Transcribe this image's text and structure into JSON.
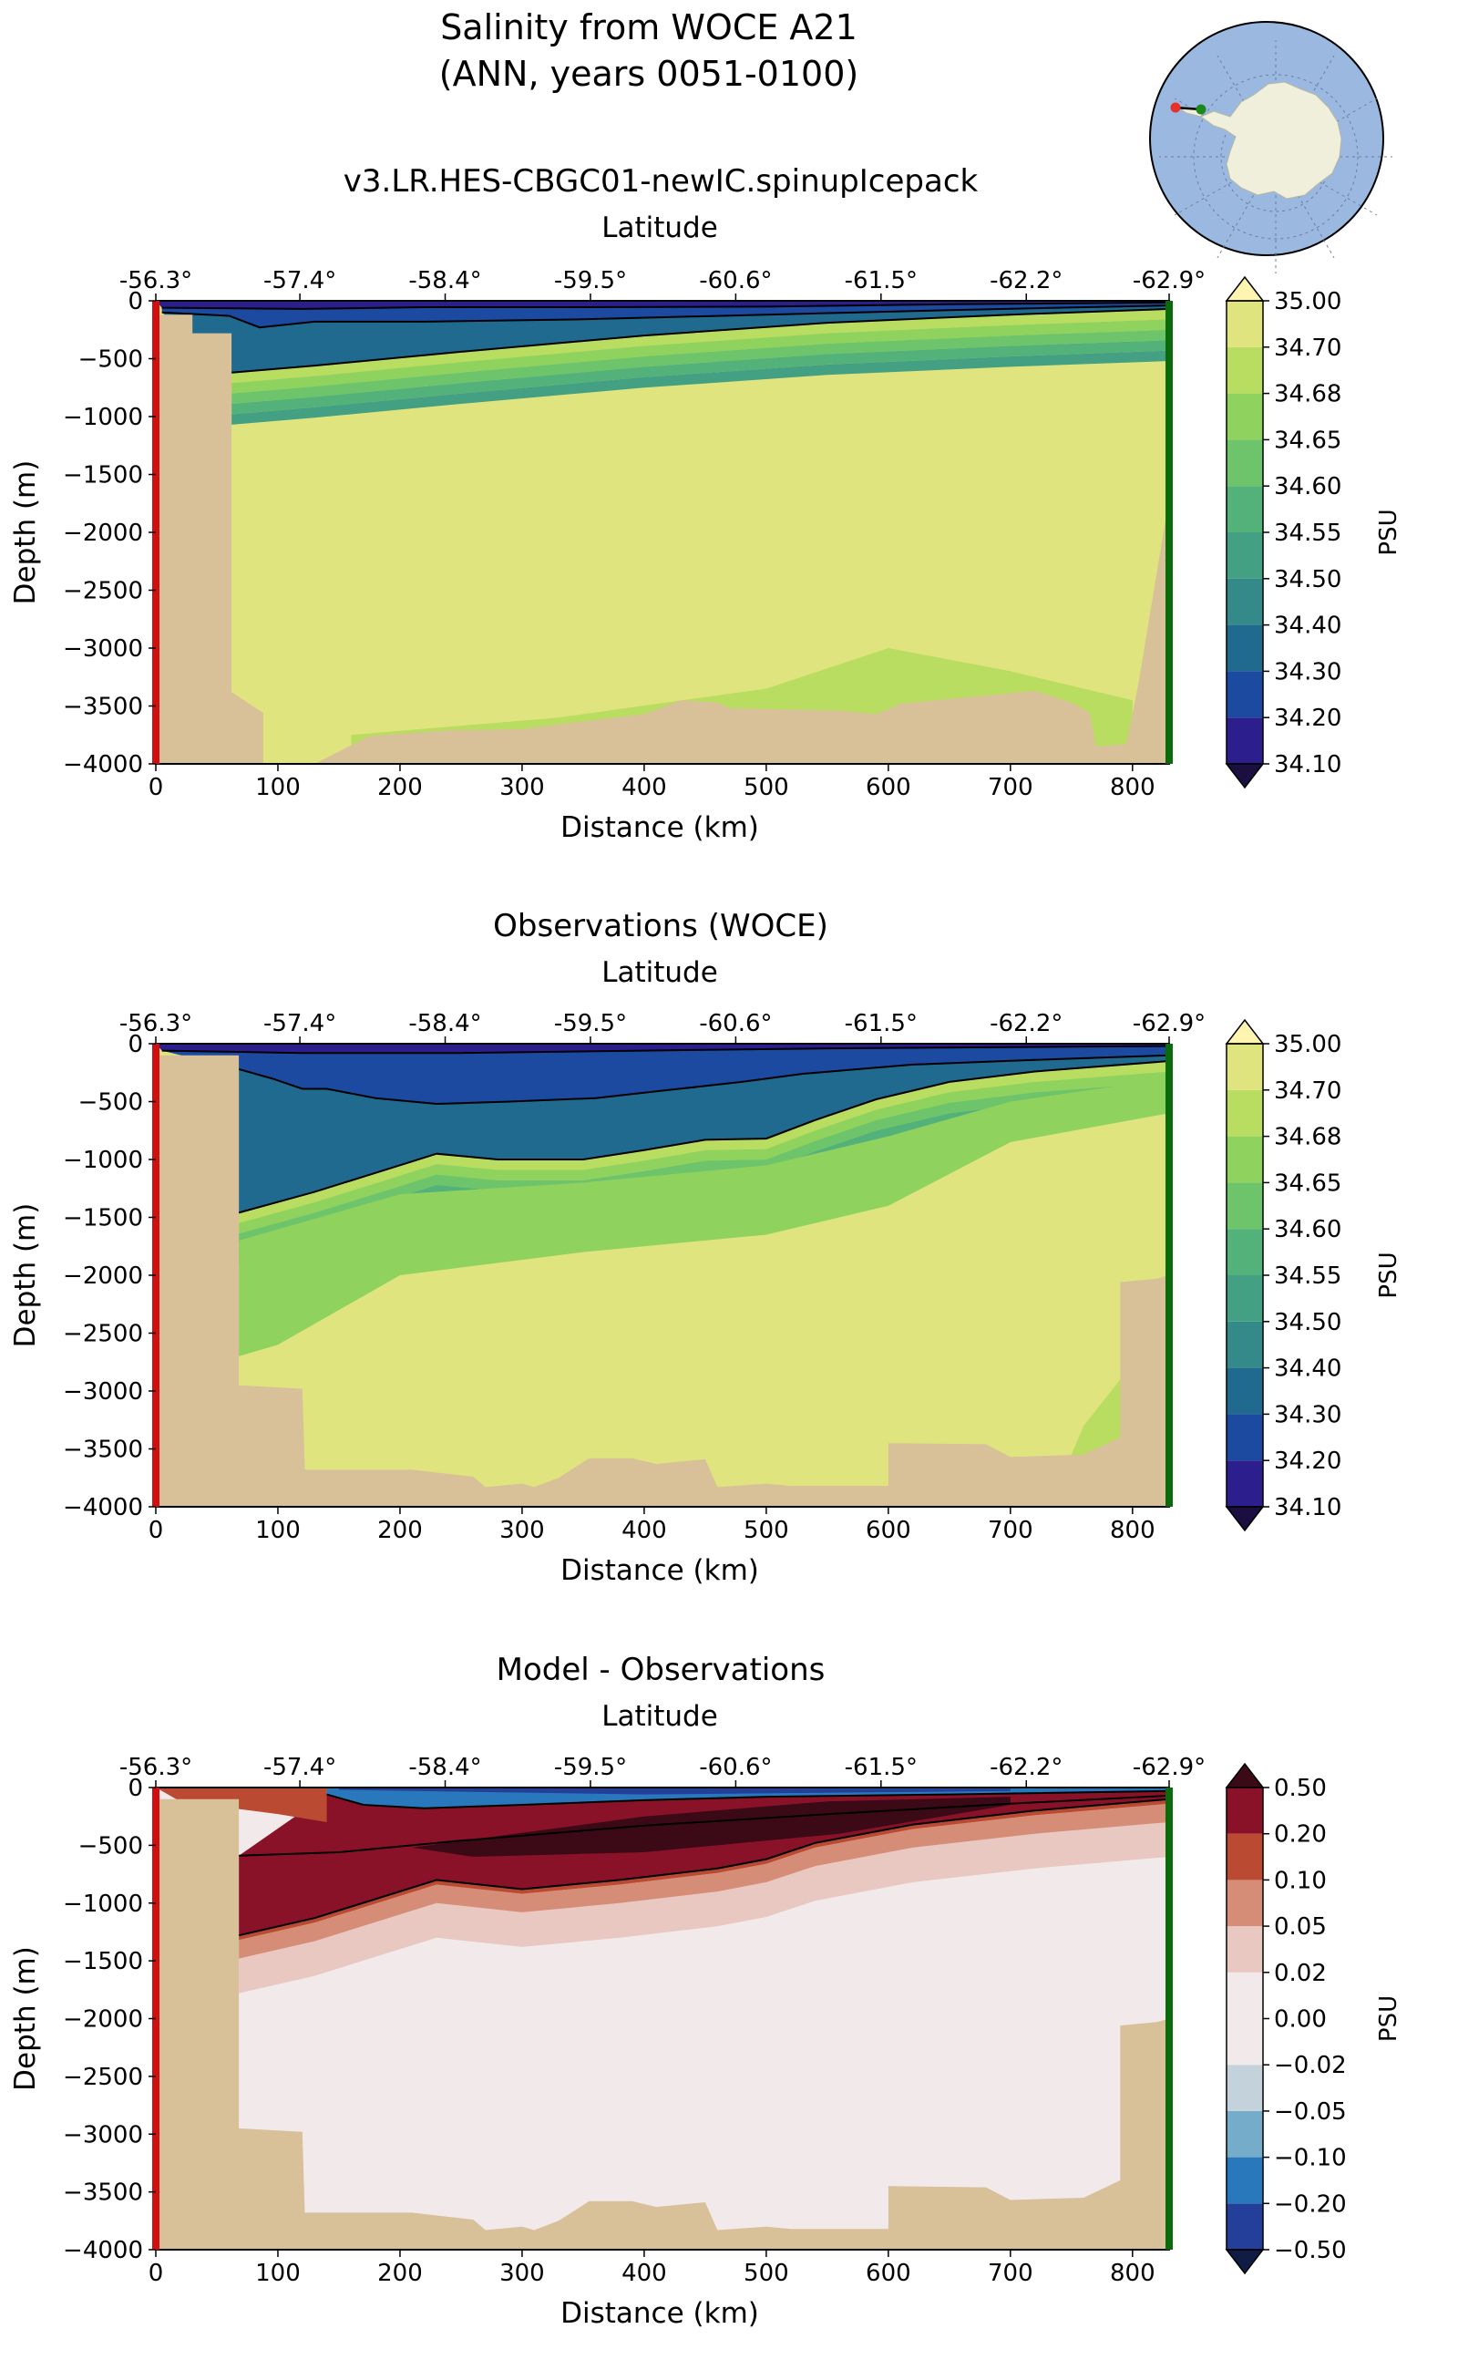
{
  "figure": {
    "title_line1": "Salinity from WOCE A21",
    "title_line2": "(ANN, years 0051-0100)"
  },
  "inset_map": {
    "projection": "south-polar-stereographic",
    "ocean_color": "#9ab8e0",
    "land_color": "#efefdc",
    "section_start_color": "#e8302a",
    "section_end_color": "#1a8a1a"
  },
  "chart_data": [
    {
      "type": "heatmap",
      "title": "v3.LR.HES-CBGC01-newIC.spinupIcepack",
      "xlabel": "Distance (km)",
      "ylabel": "Depth (m)",
      "top_axis_label": "Latitude",
      "xlim": [
        0,
        830
      ],
      "ylim": [
        -4000,
        0
      ],
      "x_ticks": [
        "0",
        "100",
        "200",
        "300",
        "400",
        "500",
        "600",
        "700",
        "800"
      ],
      "y_ticks": [
        "0",
        "−500",
        "−1000",
        "−1500",
        "−2000",
        "−2500",
        "−3000",
        "−3500",
        "−4000"
      ],
      "lat_ticks": [
        "-56.3°",
        "-57.4°",
        "-58.4°",
        "-59.5°",
        "-60.6°",
        "-61.5°",
        "-62.2°",
        "-62.9°"
      ],
      "lat_tick_positions_km": [
        0,
        118,
        237,
        356,
        475,
        594,
        713,
        830
      ],
      "colorbar": {
        "label": "PSU",
        "ticks": [
          "34.10",
          "34.20",
          "34.30",
          "34.40",
          "34.50",
          "34.55",
          "34.60",
          "34.65",
          "34.68",
          "34.70",
          "35.00"
        ],
        "colors": [
          "#2c1e8c",
          "#1b4aa0",
          "#1f6a8e",
          "#348a88",
          "#44a082",
          "#53b27a",
          "#6dc46a",
          "#8fd25e",
          "#b8dd60",
          "#e0e47e"
        ],
        "extend_low": "#1a0f40",
        "extend_high": "#fff4b0"
      },
      "bathymetry_km_depth": [
        [
          0,
          -120
        ],
        [
          30,
          -120
        ],
        [
          30,
          -280
        ],
        [
          62,
          -280
        ],
        [
          62,
          -3380
        ],
        [
          88,
          -3560
        ],
        [
          88,
          -4000
        ],
        [
          130,
          -4000
        ],
        [
          175,
          -3760
        ],
        [
          240,
          -3710
        ],
        [
          300,
          -3700
        ],
        [
          330,
          -3660
        ],
        [
          400,
          -3570
        ],
        [
          430,
          -3450
        ],
        [
          460,
          -3470
        ],
        [
          470,
          -3520
        ],
        [
          560,
          -3540
        ],
        [
          590,
          -3570
        ],
        [
          610,
          -3480
        ],
        [
          670,
          -3420
        ],
        [
          720,
          -3370
        ],
        [
          750,
          -3470
        ],
        [
          765,
          -3560
        ],
        [
          770,
          -3850
        ],
        [
          795,
          -3830
        ],
        [
          805,
          -3300
        ],
        [
          830,
          -1700
        ]
      ],
      "contours": [
        {
          "level": "34.10",
          "points": [
            [
              5,
              -60
            ],
            [
              120,
              -70
            ],
            [
              220,
              -55
            ],
            [
              350,
              -55
            ],
            [
              500,
              -50
            ],
            [
              650,
              -30
            ],
            [
              830,
              -15
            ]
          ]
        },
        {
          "level": "34.30",
          "points": [
            [
              5,
              -100
            ],
            [
              60,
              -130
            ],
            [
              85,
              -230
            ],
            [
              130,
              -180
            ],
            [
              220,
              -180
            ],
            [
              350,
              -160
            ],
            [
              500,
              -120
            ],
            [
              650,
              -80
            ],
            [
              830,
              -40
            ]
          ]
        },
        {
          "level": "34.60",
          "points": [
            [
              62,
              -620
            ],
            [
              130,
              -560
            ],
            [
              250,
              -440
            ],
            [
              400,
              -300
            ],
            [
              550,
              -190
            ],
            [
              700,
              -120
            ],
            [
              830,
              -70
            ]
          ]
        }
      ]
    },
    {
      "type": "heatmap",
      "title": "Observations (WOCE)",
      "xlabel": "Distance (km)",
      "ylabel": "Depth (m)",
      "top_axis_label": "Latitude",
      "xlim": [
        0,
        830
      ],
      "ylim": [
        -4000,
        0
      ],
      "x_ticks": [
        "0",
        "100",
        "200",
        "300",
        "400",
        "500",
        "600",
        "700",
        "800"
      ],
      "y_ticks": [
        "0",
        "−500",
        "−1000",
        "−1500",
        "−2000",
        "−2500",
        "−3000",
        "−3500",
        "−4000"
      ],
      "lat_ticks": [
        "-56.3°",
        "-57.4°",
        "-58.4°",
        "-59.5°",
        "-60.6°",
        "-61.5°",
        "-62.2°",
        "-62.9°"
      ],
      "lat_tick_positions_km": [
        0,
        118,
        237,
        356,
        475,
        594,
        713,
        830
      ],
      "colorbar": {
        "label": "PSU",
        "ticks": [
          "34.10",
          "34.20",
          "34.30",
          "34.40",
          "34.50",
          "34.55",
          "34.60",
          "34.65",
          "34.68",
          "34.70",
          "35.00"
        ],
        "colors": [
          "#2c1e8c",
          "#1b4aa0",
          "#1f6a8e",
          "#348a88",
          "#44a082",
          "#53b27a",
          "#6dc46a",
          "#8fd25e",
          "#b8dd60",
          "#e0e47e"
        ],
        "extend_low": "#1a0f40",
        "extend_high": "#fff4b0"
      },
      "bathymetry_km_depth": [
        [
          0,
          -100
        ],
        [
          68,
          -100
        ],
        [
          68,
          -2950
        ],
        [
          120,
          -2980
        ],
        [
          122,
          -3680
        ],
        [
          210,
          -3680
        ],
        [
          260,
          -3740
        ],
        [
          270,
          -3830
        ],
        [
          300,
          -3800
        ],
        [
          310,
          -3830
        ],
        [
          330,
          -3750
        ],
        [
          355,
          -3580
        ],
        [
          390,
          -3580
        ],
        [
          410,
          -3630
        ],
        [
          450,
          -3590
        ],
        [
          460,
          -3830
        ],
        [
          500,
          -3800
        ],
        [
          520,
          -3820
        ],
        [
          600,
          -3820
        ],
        [
          600,
          -3450
        ],
        [
          680,
          -3460
        ],
        [
          700,
          -3570
        ],
        [
          760,
          -3550
        ],
        [
          790,
          -3400
        ],
        [
          790,
          -2060
        ],
        [
          820,
          -2030
        ],
        [
          830,
          -2000
        ]
      ],
      "contours": [
        {
          "level": "34.20",
          "points": [
            [
              5,
              -60
            ],
            [
              120,
              -80
            ],
            [
              250,
              -80
            ],
            [
              400,
              -60
            ],
            [
              550,
              -40
            ],
            [
              700,
              -30
            ],
            [
              830,
              -20
            ]
          ]
        },
        {
          "level": "34.30",
          "points": [
            [
              68,
              -220
            ],
            [
              95,
              -300
            ],
            [
              120,
              -390
            ],
            [
              140,
              -390
            ],
            [
              180,
              -470
            ],
            [
              230,
              -520
            ],
            [
              290,
              -500
            ],
            [
              360,
              -470
            ],
            [
              420,
              -400
            ],
            [
              480,
              -330
            ],
            [
              530,
              -260
            ],
            [
              620,
              -180
            ],
            [
              720,
              -140
            ],
            [
              830,
              -100
            ]
          ]
        },
        {
          "level": "34.50",
          "points": [
            [
              68,
              -1460
            ],
            [
              130,
              -1280
            ],
            [
              200,
              -1050
            ],
            [
              230,
              -950
            ],
            [
              280,
              -1000
            ],
            [
              350,
              -1000
            ],
            [
              400,
              -920
            ],
            [
              450,
              -830
            ],
            [
              500,
              -820
            ],
            [
              540,
              -660
            ],
            [
              590,
              -480
            ],
            [
              650,
              -330
            ],
            [
              720,
              -240
            ],
            [
              830,
              -150
            ]
          ]
        }
      ]
    },
    {
      "type": "heatmap",
      "title": "Model - Observations",
      "xlabel": "Distance (km)",
      "ylabel": "Depth (m)",
      "top_axis_label": "Latitude",
      "xlim": [
        0,
        830
      ],
      "ylim": [
        -4000,
        0
      ],
      "x_ticks": [
        "0",
        "100",
        "200",
        "300",
        "400",
        "500",
        "600",
        "700",
        "800"
      ],
      "y_ticks": [
        "0",
        "−500",
        "−1000",
        "−1500",
        "−2000",
        "−2500",
        "−3000",
        "−3500",
        "−4000"
      ],
      "lat_ticks": [
        "-56.3°",
        "-57.4°",
        "-58.4°",
        "-59.5°",
        "-60.6°",
        "-61.5°",
        "-62.2°",
        "-62.9°"
      ],
      "lat_tick_positions_km": [
        0,
        118,
        237,
        356,
        475,
        594,
        713,
        830
      ],
      "colorbar": {
        "label": "PSU",
        "ticks": [
          "−0.50",
          "−0.20",
          "−0.10",
          "−0.05",
          "−0.02",
          "0.00",
          "0.02",
          "0.05",
          "0.10",
          "0.20",
          "0.50"
        ],
        "colors": [
          "#233f9a",
          "#2a78bc",
          "#74acc9",
          "#c4d3db",
          "#f2eaea",
          "#f2eaea",
          "#e8c8c0",
          "#d58d78",
          "#bb4a33",
          "#8a1228"
        ],
        "extend_low": "#101c44",
        "extend_high": "#3c0a16"
      },
      "bathymetry_km_depth": [
        [
          0,
          -100
        ],
        [
          68,
          -100
        ],
        [
          68,
          -2950
        ],
        [
          120,
          -2980
        ],
        [
          122,
          -3680
        ],
        [
          210,
          -3680
        ],
        [
          260,
          -3740
        ],
        [
          270,
          -3830
        ],
        [
          300,
          -3800
        ],
        [
          310,
          -3830
        ],
        [
          330,
          -3750
        ],
        [
          355,
          -3580
        ],
        [
          390,
          -3580
        ],
        [
          410,
          -3630
        ],
        [
          450,
          -3590
        ],
        [
          460,
          -3830
        ],
        [
          500,
          -3800
        ],
        [
          520,
          -3820
        ],
        [
          600,
          -3820
        ],
        [
          600,
          -3450
        ],
        [
          680,
          -3460
        ],
        [
          700,
          -3570
        ],
        [
          760,
          -3550
        ],
        [
          790,
          -3400
        ],
        [
          790,
          -2060
        ],
        [
          820,
          -2030
        ],
        [
          830,
          -2000
        ]
      ],
      "contours": [
        {
          "level": "0.00",
          "points": [
            [
              140,
              -60
            ],
            [
              170,
              -150
            ],
            [
              220,
              -180
            ],
            [
              300,
              -150
            ],
            [
              400,
              -110
            ],
            [
              500,
              -80
            ],
            [
              650,
              -60
            ],
            [
              830,
              -30
            ]
          ]
        },
        {
          "level": "0.20",
          "points": [
            [
              68,
              -590
            ],
            [
              150,
              -560
            ],
            [
              250,
              -460
            ],
            [
              400,
              -330
            ],
            [
              550,
              -230
            ],
            [
              700,
              -140
            ],
            [
              830,
              -70
            ]
          ]
        },
        {
          "level": "0.50",
          "points": [
            [
              68,
              -1280
            ],
            [
              130,
              -1130
            ],
            [
              230,
              -800
            ],
            [
              300,
              -880
            ],
            [
              380,
              -800
            ],
            [
              460,
              -700
            ],
            [
              500,
              -620
            ],
            [
              540,
              -480
            ],
            [
              620,
              -320
            ],
            [
              720,
              -200
            ],
            [
              830,
              -100
            ]
          ]
        }
      ]
    }
  ]
}
